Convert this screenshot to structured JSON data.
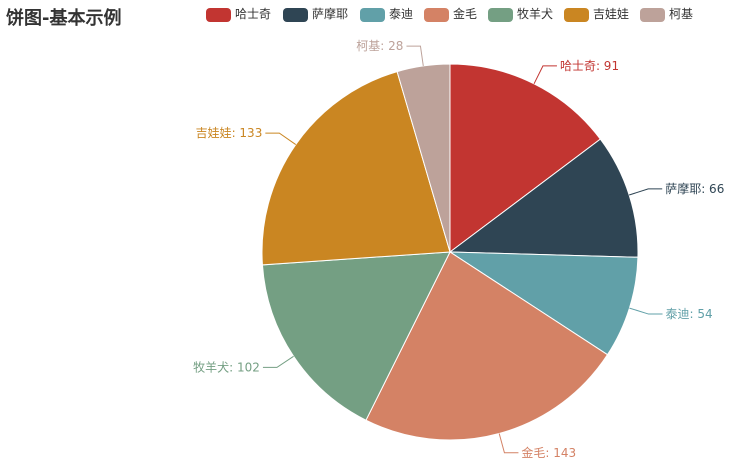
{
  "chart_data": {
    "type": "pie",
    "title": "饼图-基本示例",
    "legend_position": "top",
    "label_separator": ": ",
    "slices": [
      {
        "name": "哈士奇",
        "value": 91,
        "color": "#c23531"
      },
      {
        "name": "萨摩耶",
        "value": 66,
        "color": "#2f4554"
      },
      {
        "name": "泰迪",
        "value": 54,
        "color": "#61a0a8"
      },
      {
        "name": "金毛",
        "value": 143,
        "color": "#d48265"
      },
      {
        "name": "牧羊犬",
        "value": 102,
        "color": "#749f83"
      },
      {
        "name": "吉娃娃",
        "value": 133,
        "color": "#ca8622"
      },
      {
        "name": "柯基",
        "value": 28,
        "color": "#bda29a"
      }
    ]
  }
}
